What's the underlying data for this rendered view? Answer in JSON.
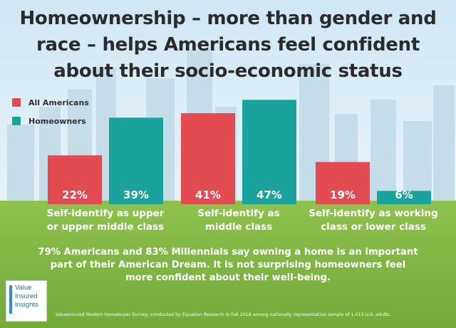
{
  "title": "Homeownership – more than gender and race – helps Americans feel confident about their socio-economic status",
  "colors": {
    "all_americans": "#e24b52",
    "homeowners": "#1aa39d"
  },
  "legend": {
    "all_americans_label": "All Americans",
    "homeowners_label": "Homeowners"
  },
  "chart_data": {
    "type": "bar",
    "title": "Homeownership – more than gender and race – helps Americans feel confident about their socio-economic status",
    "categories": [
      [
        "Self-identify as upper",
        "or upper middle class"
      ],
      [
        "Self-identify as",
        "middle class"
      ],
      [
        "Self-identify as working",
        "class or lower class"
      ]
    ],
    "series": [
      {
        "name": "All Americans",
        "values": [
          22,
          41,
          19
        ]
      },
      {
        "name": "Homeowners",
        "values": [
          39,
          47,
          6
        ]
      }
    ],
    "value_suffix": "%",
    "ylim": [
      0,
      50
    ],
    "legend_position": "top-left",
    "grid": false
  },
  "note": "79% Americans and 83% Millennials say owning a home is an important part of their American Dream. It is not surprising homeowners feel more confident about their well-being.",
  "logo": {
    "line1": "Value",
    "line2": "Insured",
    "line3": "Insights"
  },
  "source": "ValueInsured Modern Homebuyer Survey, conducted by Equation Research in Fall 2018 among nationally representative sample of 1,013 U.S. adults."
}
